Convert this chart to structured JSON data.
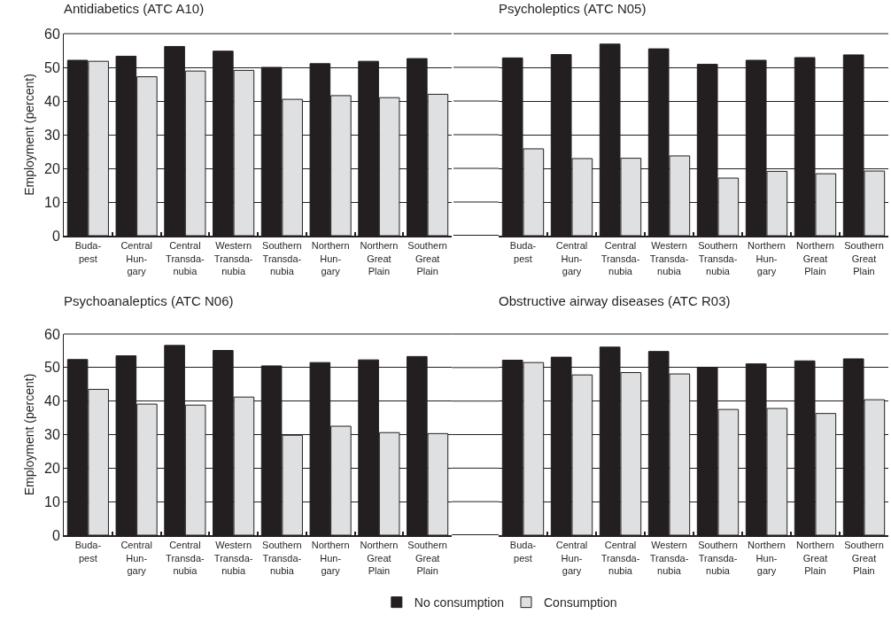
{
  "chart_data": [
    {
      "type": "bar",
      "title": "Antidiabetics (ATC A10)",
      "ylabel": "Employment (percent)",
      "categories": [
        "Buda-\npest",
        "Central\nHun-\ngary",
        "Central\nTransda-\nnubia",
        "Western\nTransda-\nnubia",
        "Southern\nTransda-\nnubia",
        "Northern\nHun-\ngary",
        "Northern\nGreat\nPlain",
        "Southern\nGreat\nPlain"
      ],
      "ylim": [
        0,
        60
      ],
      "yticks": [
        0,
        10,
        20,
        30,
        40,
        50,
        60
      ],
      "grid": "y",
      "legend": false,
      "series": [
        {
          "color": "#231f20",
          "values": [
            52.1,
            53.3,
            56.2,
            54.8,
            50.0,
            51.1,
            51.8,
            52.6
          ]
        },
        {
          "color": "#dfe0e2",
          "values": [
            51.8,
            47.2,
            48.9,
            49.1,
            40.5,
            41.6,
            41.0,
            42.0
          ]
        }
      ]
    },
    {
      "type": "bar",
      "title": "Psycholeptics (ATC N05)",
      "categories": [
        "Buda-\npest",
        "Central\nHun-\ngary",
        "Central\nTransda-\nnubia",
        "Western\nTransda-\nnubia",
        "Southern\nTransda-\nnubia",
        "Northern\nHun-\ngary",
        "Northern\nGreat\nPlain",
        "Southern\nGreat\nPlain"
      ],
      "ylim": [
        0,
        60
      ],
      "yticks": [
        0,
        10,
        20,
        30,
        40,
        50,
        60
      ],
      "grid": "y",
      "legend": false,
      "tick_labels": "x",
      "series": [
        {
          "color": "#231f20",
          "values": [
            52.8,
            53.8,
            56.9,
            55.5,
            50.9,
            52.1,
            52.9,
            53.7
          ]
        },
        {
          "color": "#dfe0e2",
          "values": [
            25.8,
            22.9,
            23.0,
            23.7,
            17.1,
            19.1,
            18.4,
            19.2
          ]
        }
      ]
    },
    {
      "type": "bar",
      "title": "Psychoanaleptics (ATC N06)",
      "ylabel": "Employment (percent)",
      "categories": [
        "Buda-\npest",
        "Central\nHun-\ngary",
        "Central\nTransda-\nnubia",
        "Western\nTransda-\nnubia",
        "Southern\nTransda-\nnubia",
        "Northern\nHun-\ngary",
        "Northern\nGreat\nPlain",
        "Southern\nGreat\nPlain"
      ],
      "ylim": [
        0,
        60
      ],
      "yticks": [
        0,
        10,
        20,
        30,
        40,
        50,
        60
      ],
      "grid": "y",
      "legend": false,
      "series": [
        {
          "color": "#231f20",
          "values": [
            52.4,
            53.5,
            56.6,
            55.1,
            50.5,
            51.5,
            52.3,
            53.3
          ]
        },
        {
          "color": "#dfe0e2",
          "values": [
            43.5,
            39.1,
            38.8,
            41.2,
            29.8,
            32.5,
            30.6,
            30.3
          ]
        }
      ]
    },
    {
      "type": "bar",
      "title": "Obstructive airway diseases (ATC R03)",
      "categories": [
        "Buda-\npest",
        "Central\nHun-\ngary",
        "Central\nTransda-\nnubia",
        "Western\nTransda-\nnubia",
        "Southern\nTransda-\nnubia",
        "Northern\nHun-\ngary",
        "Northern\nGreat\nPlain",
        "Southern\nGreat\nPlain"
      ],
      "ylim": [
        0,
        60
      ],
      "yticks": [
        0,
        10,
        20,
        30,
        40,
        50,
        60
      ],
      "grid": "y",
      "legend": "bottom",
      "tick_labels": "x",
      "series": [
        {
          "name": "No consumption",
          "color": "#231f20",
          "values": [
            52.2,
            53.1,
            56.1,
            54.8,
            50.1,
            51.1,
            52.0,
            52.6
          ]
        },
        {
          "name": "Consumption",
          "color": "#dfe0e2",
          "values": [
            51.5,
            47.8,
            48.5,
            48.1,
            37.5,
            37.8,
            36.3,
            40.4
          ]
        }
      ]
    }
  ]
}
